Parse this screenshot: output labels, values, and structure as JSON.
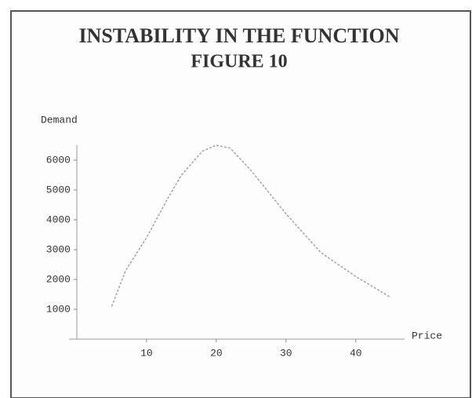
{
  "chart_data": {
    "type": "line",
    "title": "INSTABILITY IN THE FUNCTION",
    "subtitle": "FIGURE 10",
    "y_label": "Demand",
    "x_label": "Price",
    "x": [
      5,
      7,
      10,
      13,
      15,
      18,
      20,
      22,
      25,
      30,
      35,
      40,
      45
    ],
    "values": [
      1100,
      2300,
      3400,
      4700,
      5500,
      6300,
      6500,
      6400,
      5650,
      4200,
      2900,
      2100,
      1400
    ],
    "color": "#a8a8a8",
    "xlim": [
      0,
      47
    ],
    "xticks": [
      10,
      20,
      30,
      40
    ],
    "ylim": [
      0,
      6500
    ],
    "yticks": [
      1000,
      2000,
      3000,
      4000,
      5000,
      6000
    ],
    "grid": false
  }
}
